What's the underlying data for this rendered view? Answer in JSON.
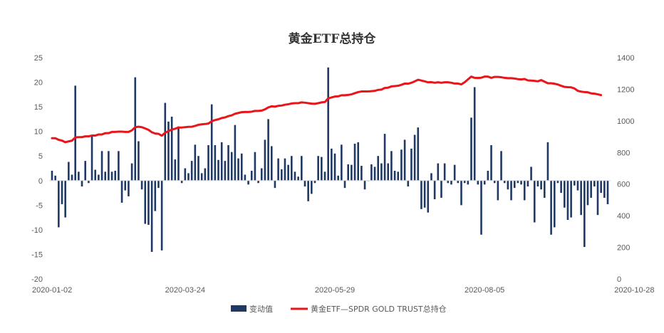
{
  "chart_data": {
    "type": "bar+line",
    "title": "黄金ETF总持仓",
    "left_axis": {
      "min": -20,
      "max": 25,
      "ticks": [
        "25",
        "20",
        "15",
        "10",
        "5",
        "0",
        "-5",
        "-10",
        "-15",
        "-20"
      ]
    },
    "right_axis": {
      "min": 0,
      "max": 1400,
      "ticks": [
        "1400",
        "1200",
        "1000",
        "800",
        "600",
        "400",
        "200",
        "0"
      ]
    },
    "x_tick_labels": [
      "2020-01-02",
      "2020-03-24",
      "2020-05-29",
      "2020-08-05",
      "2020-10-28"
    ],
    "x_tick_index": [
      0,
      40,
      85,
      130,
      175
    ],
    "series": [
      {
        "name": "变动值",
        "kind": "bar",
        "axis": "left",
        "color": "#1f3864",
        "values": [
          2.0,
          1.0,
          -9.5,
          -4.8,
          -7.5,
          3.8,
          1.2,
          19.3,
          1.8,
          -1.2,
          4.0,
          -0.5,
          9.2,
          2.2,
          1.2,
          6.0,
          1.8,
          6.0,
          1.8,
          2.0,
          6.0,
          -4.5,
          -2.0,
          -3.2,
          3.5,
          21.0,
          8.0,
          -1.8,
          -8.8,
          -9.0,
          -14.5,
          -6.2,
          -1.5,
          -14.2,
          15.8,
          12.0,
          13.0,
          4.3,
          11.0,
          -0.5,
          2.5,
          1.5,
          4.0,
          7.3,
          5.0,
          1.5,
          2.5,
          7.2,
          15.5,
          7.2,
          4.2,
          7.8,
          4.0,
          7.2,
          5.8,
          11.3,
          4.5,
          5.5,
          1.2,
          -0.8,
          2.0,
          5.8,
          -0.5,
          2.5,
          8.3,
          12.5,
          7.0,
          -1.5,
          4.5,
          2.3,
          4.5,
          3.2,
          5.0,
          1.8,
          0.8,
          5.0,
          -1.2,
          -4.2,
          -2.7,
          -0.5,
          5.0,
          4.8,
          1.8,
          23.0,
          6.5,
          5.5,
          1.0,
          7.3,
          -1.5,
          3.3,
          3.2,
          7.5,
          7.8,
          3.0,
          -1.8,
          0.0,
          3.3,
          2.8,
          5.0,
          3.5,
          9.5,
          3.5,
          6.0,
          2.0,
          1.8,
          6.3,
          8.3,
          -1.2,
          6.5,
          9.3,
          10.8,
          -5.8,
          -5.5,
          -6.5,
          1.5,
          -3.8,
          3.5,
          -3.5,
          3.5,
          -0.5,
          -0.8,
          3.2,
          -0.5,
          -5.0,
          -0.5,
          -0.8,
          12.8,
          19.0,
          -0.8,
          -11.0,
          -0.8,
          2.0,
          7.2,
          -0.5,
          -4.0,
          6.0,
          -0.5,
          -1.8,
          -4.0,
          -1.5,
          -0.5,
          -0.8,
          -4.0,
          -1.2,
          2.8,
          -8.5,
          -1.2,
          -1.8,
          -3.5,
          7.8,
          -11.0,
          -9.5,
          -0.5,
          -2.5,
          -5.5,
          -8.0,
          -7.5,
          -1.0,
          -2.0,
          -7.0,
          -13.5,
          -5.0,
          -3.5,
          -1.2,
          -7.0,
          -2.5,
          -3.5,
          -4.8
        ]
      },
      {
        "name": "黄金ETF—SPDR GOLD TRUST总持仓",
        "kind": "line",
        "axis": "right",
        "color": "#e8161a",
        "values": [
          890,
          890,
          880,
          875,
          865,
          870,
          875,
          895,
          897,
          897,
          902,
          902,
          907,
          907,
          914,
          914,
          922,
          922,
          930,
          930,
          932,
          932,
          930,
          930,
          940,
          960,
          963,
          960,
          952,
          943,
          928,
          920,
          918,
          906,
          925,
          935,
          945,
          950,
          958,
          958,
          960,
          962,
          963,
          968,
          975,
          978,
          980,
          983,
          998,
          1005,
          1010,
          1018,
          1022,
          1030,
          1035,
          1045,
          1050,
          1055,
          1056,
          1056,
          1058,
          1063,
          1063,
          1065,
          1073,
          1085,
          1092,
          1090,
          1095,
          1097,
          1102,
          1105,
          1110,
          1112,
          1112,
          1117,
          1115,
          1112,
          1109,
          1108,
          1112,
          1117,
          1119,
          1142,
          1148,
          1154,
          1155,
          1162,
          1162,
          1164,
          1168,
          1175,
          1182,
          1186,
          1186,
          1186,
          1188,
          1190,
          1196,
          1198,
          1208,
          1210,
          1218,
          1220,
          1222,
          1228,
          1236,
          1235,
          1241,
          1250,
          1260,
          1255,
          1250,
          1244,
          1245,
          1241,
          1244,
          1241,
          1244,
          1244,
          1241,
          1236,
          1236,
          1231,
          1244,
          1262,
          1280,
          1272,
          1271,
          1273,
          1280,
          1280,
          1272,
          1278,
          1278,
          1276,
          1272,
          1270,
          1270,
          1268,
          1264,
          1262,
          1265,
          1256,
          1255,
          1253,
          1250,
          1258,
          1248,
          1238,
          1238,
          1235,
          1230,
          1222,
          1215,
          1213,
          1212,
          1205,
          1190,
          1185,
          1182,
          1181,
          1174,
          1172,
          1168,
          1163
        ]
      }
    ],
    "legend_position": "bottom",
    "grid": false
  }
}
